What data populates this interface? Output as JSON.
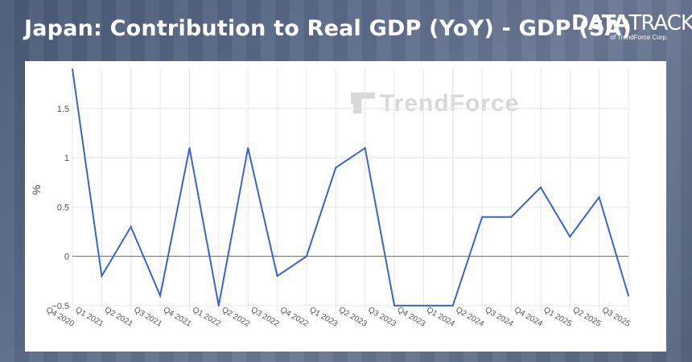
{
  "title": "Japan: Contribution to Real GDP (YoY) - GDP (SA)",
  "brand": {
    "main_bold": "DATA",
    "main_light": "TRACK",
    "sub": "of TrendForce Corp."
  },
  "watermark": "TrendForce",
  "colors": {
    "line": "#3a62d6",
    "zero_line": "#666666",
    "grid": "#e6e6e6"
  },
  "chart_data": {
    "type": "line",
    "title": "Japan: Contribution to Real GDP (YoY) - GDP (SA)",
    "xlabel": "",
    "ylabel": "%",
    "categories": [
      "Q4 2020",
      "Q1 2021",
      "Q2 2021",
      "Q3 2021",
      "Q4 2021",
      "Q1 2022",
      "Q2 2022",
      "Q3 2022",
      "Q4 2022",
      "Q1 2023",
      "Q2 2023",
      "Q3 2023",
      "Q4 2023",
      "Q1 2024",
      "Q2 2024",
      "Q3 2024",
      "Q4 2024",
      "Q1 2025",
      "Q2 2025",
      "Q3 2025"
    ],
    "series": [
      {
        "values": [
          1.9,
          -0.2,
          0.3,
          -0.4,
          1.1,
          -0.5,
          1.1,
          -0.2,
          0.0,
          0.9,
          1.1,
          -0.5,
          -0.5,
          -0.5,
          0.4,
          0.4,
          0.7,
          0.2,
          0.6,
          -0.4
        ]
      }
    ],
    "yticks": [
      "−0.5",
      "0",
      "0.5",
      "1",
      "1.5"
    ],
    "ytick_values": [
      -0.5,
      0,
      0.5,
      1,
      1.5
    ],
    "ylim": [
      -0.55,
      1.9
    ],
    "grid": true,
    "legend": "none"
  }
}
